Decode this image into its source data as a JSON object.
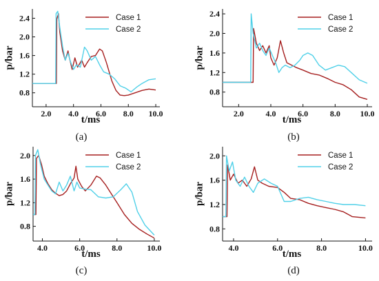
{
  "series_colors": {
    "case1": "#a51e1e",
    "case2": "#4fd0e8"
  },
  "chart_data": [
    {
      "type": "line",
      "panel_label": "(a)",
      "xlabel": "t/ms",
      "ylabel": "p/bar",
      "xlim": [
        1.0,
        10.3
      ],
      "ylim": [
        0.5,
        2.6
      ],
      "xticks": [
        2.0,
        4.0,
        6.0,
        8.0,
        10.0
      ],
      "xtick_labels": [
        "2.0",
        "4.0",
        "6.0",
        "8.0",
        "10.0"
      ],
      "yticks": [
        0.8,
        1.2,
        1.6,
        2.0,
        2.4
      ],
      "ytick_labels": [
        "0.8",
        "1.2",
        "1.6",
        "2.0",
        "2.4"
      ],
      "legend": "top-right",
      "series": [
        {
          "name": "Case 1",
          "points": [
            [
              1.0,
              1.0
            ],
            [
              2.75,
              1.0
            ],
            [
              2.78,
              2.38
            ],
            [
              2.9,
              2.5
            ],
            [
              3.0,
              2.1
            ],
            [
              3.2,
              1.7
            ],
            [
              3.4,
              1.5
            ],
            [
              3.6,
              1.7
            ],
            [
              3.7,
              1.55
            ],
            [
              3.9,
              1.3
            ],
            [
              4.1,
              1.55
            ],
            [
              4.3,
              1.35
            ],
            [
              4.6,
              1.5
            ],
            [
              4.8,
              1.35
            ],
            [
              5.0,
              1.45
            ],
            [
              5.3,
              1.58
            ],
            [
              5.6,
              1.6
            ],
            [
              5.9,
              1.74
            ],
            [
              6.1,
              1.7
            ],
            [
              6.4,
              1.45
            ],
            [
              6.8,
              1.05
            ],
            [
              7.1,
              0.85
            ],
            [
              7.4,
              0.75
            ],
            [
              7.7,
              0.74
            ],
            [
              8.0,
              0.75
            ],
            [
              8.5,
              0.8
            ],
            [
              9.0,
              0.85
            ],
            [
              9.5,
              0.88
            ],
            [
              10.0,
              0.86
            ]
          ]
        },
        {
          "name": "Case 2",
          "points": [
            [
              1.0,
              1.0
            ],
            [
              2.7,
              1.0
            ],
            [
              2.73,
              2.5
            ],
            [
              2.85,
              2.55
            ],
            [
              3.0,
              2.2
            ],
            [
              3.2,
              1.8
            ],
            [
              3.4,
              1.5
            ],
            [
              3.6,
              1.65
            ],
            [
              3.8,
              1.45
            ],
            [
              4.0,
              1.3
            ],
            [
              4.2,
              1.4
            ],
            [
              4.5,
              1.35
            ],
            [
              4.8,
              1.78
            ],
            [
              5.0,
              1.7
            ],
            [
              5.3,
              1.5
            ],
            [
              5.6,
              1.58
            ],
            [
              5.9,
              1.4
            ],
            [
              6.2,
              1.25
            ],
            [
              6.6,
              1.2
            ],
            [
              7.0,
              1.1
            ],
            [
              7.4,
              0.95
            ],
            [
              7.8,
              0.9
            ],
            [
              8.2,
              0.82
            ],
            [
              8.6,
              0.92
            ],
            [
              9.0,
              1.0
            ],
            [
              9.5,
              1.08
            ],
            [
              10.0,
              1.1
            ]
          ]
        }
      ]
    },
    {
      "type": "line",
      "panel_label": "(b)",
      "xlabel": "t/ms",
      "ylabel": "p/bar",
      "xlim": [
        1.0,
        10.3
      ],
      "ylim": [
        0.5,
        2.5
      ],
      "xticks": [
        2.0,
        4.0,
        6.0,
        8.0,
        10.0
      ],
      "xtick_labels": [
        "2.0",
        "4.0",
        "6.0",
        "8.0",
        "10.0"
      ],
      "yticks": [
        0.8,
        1.2,
        1.6,
        2.0,
        2.4
      ],
      "ytick_labels": [
        "0.8",
        "1.2",
        "1.6",
        "2.0",
        "2.4"
      ],
      "legend": "top-right",
      "series": [
        {
          "name": "Case 1",
          "points": [
            [
              1.0,
              1.0
            ],
            [
              2.9,
              1.0
            ],
            [
              2.93,
              2.1
            ],
            [
              3.1,
              1.8
            ],
            [
              3.3,
              1.65
            ],
            [
              3.5,
              1.75
            ],
            [
              3.7,
              1.6
            ],
            [
              3.9,
              1.75
            ],
            [
              4.0,
              1.5
            ],
            [
              4.2,
              1.35
            ],
            [
              4.4,
              1.5
            ],
            [
              4.6,
              1.85
            ],
            [
              4.8,
              1.6
            ],
            [
              5.0,
              1.4
            ],
            [
              5.3,
              1.35
            ],
            [
              5.6,
              1.3
            ],
            [
              6.0,
              1.25
            ],
            [
              6.5,
              1.18
            ],
            [
              7.0,
              1.15
            ],
            [
              7.5,
              1.08
            ],
            [
              8.0,
              1.0
            ],
            [
              8.5,
              0.95
            ],
            [
              9.0,
              0.85
            ],
            [
              9.5,
              0.7
            ],
            [
              10.0,
              0.65
            ]
          ]
        },
        {
          "name": "Case 2",
          "points": [
            [
              1.0,
              1.0
            ],
            [
              2.75,
              1.0
            ],
            [
              2.78,
              2.4
            ],
            [
              2.9,
              2.0
            ],
            [
              3.1,
              1.7
            ],
            [
              3.3,
              1.8
            ],
            [
              3.5,
              1.65
            ],
            [
              3.7,
              1.55
            ],
            [
              3.9,
              1.7
            ],
            [
              4.1,
              1.55
            ],
            [
              4.3,
              1.4
            ],
            [
              4.5,
              1.2
            ],
            [
              4.7,
              1.3
            ],
            [
              4.9,
              1.35
            ],
            [
              5.2,
              1.3
            ],
            [
              5.5,
              1.35
            ],
            [
              5.8,
              1.45
            ],
            [
              6.0,
              1.55
            ],
            [
              6.3,
              1.6
            ],
            [
              6.6,
              1.55
            ],
            [
              7.0,
              1.35
            ],
            [
              7.4,
              1.25
            ],
            [
              7.8,
              1.3
            ],
            [
              8.2,
              1.35
            ],
            [
              8.6,
              1.32
            ],
            [
              9.0,
              1.2
            ],
            [
              9.5,
              1.05
            ],
            [
              10.0,
              0.98
            ]
          ]
        }
      ]
    },
    {
      "type": "line",
      "panel_label": "(c)",
      "xlabel": "t/ms",
      "ylabel": "p/bar",
      "xlim": [
        3.5,
        10.3
      ],
      "ylim": [
        0.55,
        2.15
      ],
      "xticks": [
        4.0,
        6.0,
        8.0,
        10.0
      ],
      "xtick_labels": [
        "4.0",
        "6.0",
        "8.0",
        "10.0"
      ],
      "yticks": [
        0.8,
        1.2,
        1.6,
        2.0
      ],
      "ytick_labels": [
        "0.8",
        "1.2",
        "1.6",
        "2.0"
      ],
      "legend": "top-right",
      "series": [
        {
          "name": "Case 1",
          "points": [
            [
              3.5,
              1.0
            ],
            [
              3.65,
              1.0
            ],
            [
              3.68,
              1.95
            ],
            [
              3.8,
              2.0
            ],
            [
              3.95,
              1.85
            ],
            [
              4.1,
              1.65
            ],
            [
              4.3,
              1.52
            ],
            [
              4.5,
              1.42
            ],
            [
              4.7,
              1.36
            ],
            [
              4.9,
              1.32
            ],
            [
              5.1,
              1.34
            ],
            [
              5.3,
              1.4
            ],
            [
              5.5,
              1.52
            ],
            [
              5.7,
              1.62
            ],
            [
              5.8,
              1.82
            ],
            [
              5.9,
              1.6
            ],
            [
              6.1,
              1.48
            ],
            [
              6.3,
              1.4
            ],
            [
              6.6,
              1.5
            ],
            [
              6.9,
              1.65
            ],
            [
              7.1,
              1.62
            ],
            [
              7.4,
              1.5
            ],
            [
              7.7,
              1.35
            ],
            [
              8.0,
              1.2
            ],
            [
              8.4,
              1.0
            ],
            [
              8.8,
              0.85
            ],
            [
              9.2,
              0.75
            ],
            [
              9.6,
              0.67
            ],
            [
              10.0,
              0.6
            ]
          ]
        },
        {
          "name": "Case 2",
          "points": [
            [
              3.5,
              1.0
            ],
            [
              3.6,
              1.0
            ],
            [
              3.63,
              2.0
            ],
            [
              3.75,
              2.1
            ],
            [
              3.9,
              1.85
            ],
            [
              4.1,
              1.6
            ],
            [
              4.3,
              1.5
            ],
            [
              4.5,
              1.4
            ],
            [
              4.7,
              1.35
            ],
            [
              4.9,
              1.55
            ],
            [
              5.1,
              1.4
            ],
            [
              5.3,
              1.5
            ],
            [
              5.5,
              1.65
            ],
            [
              5.7,
              1.4
            ],
            [
              5.85,
              1.55
            ],
            [
              6.0,
              1.45
            ],
            [
              6.3,
              1.43
            ],
            [
              6.6,
              1.42
            ],
            [
              7.0,
              1.3
            ],
            [
              7.4,
              1.28
            ],
            [
              7.8,
              1.3
            ],
            [
              8.2,
              1.42
            ],
            [
              8.5,
              1.52
            ],
            [
              8.8,
              1.38
            ],
            [
              9.1,
              1.05
            ],
            [
              9.5,
              0.82
            ],
            [
              10.0,
              0.65
            ]
          ]
        }
      ]
    },
    {
      "type": "line",
      "panel_label": "(d)",
      "xlabel": "t/ms",
      "ylabel": "p/bar",
      "xlim": [
        3.5,
        10.3
      ],
      "ylim": [
        0.6,
        2.15
      ],
      "xticks": [
        4.0,
        6.0,
        8.0,
        10.0
      ],
      "xtick_labels": [
        "4.0",
        "6.0",
        "8.0",
        "10.0"
      ],
      "yticks": [
        0.8,
        1.2,
        1.6,
        2.0
      ],
      "ytick_labels": [
        "0.8",
        "1.2",
        "1.6",
        "2.0"
      ],
      "legend": "top-right",
      "series": [
        {
          "name": "Case 1",
          "points": [
            [
              3.5,
              1.0
            ],
            [
              3.7,
              1.0
            ],
            [
              3.73,
              1.85
            ],
            [
              3.85,
              1.6
            ],
            [
              4.0,
              1.7
            ],
            [
              4.2,
              1.55
            ],
            [
              4.4,
              1.6
            ],
            [
              4.6,
              1.5
            ],
            [
              4.8,
              1.62
            ],
            [
              4.95,
              1.82
            ],
            [
              5.1,
              1.6
            ],
            [
              5.3,
              1.55
            ],
            [
              5.6,
              1.5
            ],
            [
              6.0,
              1.48
            ],
            [
              6.3,
              1.4
            ],
            [
              6.6,
              1.3
            ],
            [
              7.0,
              1.28
            ],
            [
              7.4,
              1.22
            ],
            [
              7.8,
              1.18
            ],
            [
              8.2,
              1.15
            ],
            [
              8.6,
              1.12
            ],
            [
              9.0,
              1.08
            ],
            [
              9.4,
              1.0
            ],
            [
              10.0,
              0.98
            ]
          ]
        },
        {
          "name": "Case 2",
          "points": [
            [
              3.5,
              1.0
            ],
            [
              3.65,
              1.0
            ],
            [
              3.68,
              2.0
            ],
            [
              3.8,
              1.75
            ],
            [
              3.95,
              1.9
            ],
            [
              4.1,
              1.6
            ],
            [
              4.3,
              1.5
            ],
            [
              4.5,
              1.65
            ],
            [
              4.7,
              1.5
            ],
            [
              4.9,
              1.4
            ],
            [
              5.1,
              1.55
            ],
            [
              5.4,
              1.62
            ],
            [
              5.7,
              1.55
            ],
            [
              6.0,
              1.5
            ],
            [
              6.3,
              1.25
            ],
            [
              6.6,
              1.25
            ],
            [
              7.0,
              1.3
            ],
            [
              7.4,
              1.32
            ],
            [
              7.8,
              1.28
            ],
            [
              8.2,
              1.25
            ],
            [
              8.6,
              1.22
            ],
            [
              9.0,
              1.2
            ],
            [
              9.5,
              1.2
            ],
            [
              10.0,
              1.18
            ]
          ]
        }
      ]
    }
  ]
}
